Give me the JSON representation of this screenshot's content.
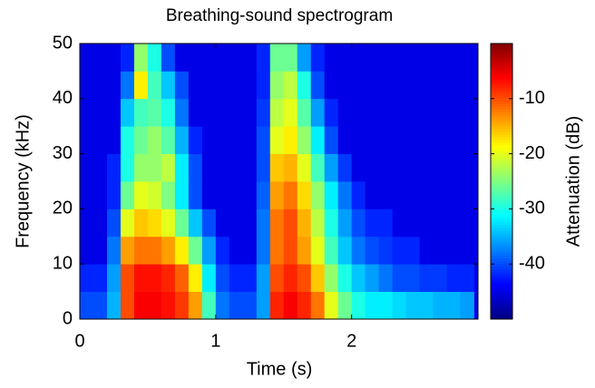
{
  "chart_data": {
    "type": "heatmap",
    "title": "Breathing-sound spectrogram",
    "x_label": "Time (s)",
    "y_label": "Frequency (kHz)",
    "colorbar_label": "Attenuation (dB)",
    "colormap": "jet",
    "xlim": [
      0,
      2.93
    ],
    "xticks": [
      0,
      1,
      2
    ],
    "ylim": [
      0,
      50
    ],
    "yticks": [
      0,
      10,
      20,
      30,
      40,
      50
    ],
    "clim": [
      -50,
      0
    ],
    "cticks": [
      -10,
      -20,
      -30,
      -40
    ],
    "x": [
      0.05,
      0.15,
      0.25,
      0.35,
      0.45,
      0.55,
      0.65,
      0.75,
      0.85,
      0.95,
      1.05,
      1.15,
      1.25,
      1.35,
      1.45,
      1.55,
      1.65,
      1.75,
      1.85,
      1.95,
      2.05,
      2.15,
      2.25,
      2.35,
      2.45,
      2.55,
      2.65,
      2.75,
      2.85
    ],
    "y": [
      2.5,
      7.5,
      12.5,
      17.5,
      22.5,
      27.5,
      32.5,
      37.5,
      42.5,
      47.5
    ],
    "z": [
      [
        -40,
        -40,
        -35,
        -10,
        -6,
        -6,
        -7,
        -9,
        -14,
        -28,
        -38,
        -40,
        -40,
        -36,
        -8,
        -6,
        -8,
        -12,
        -20,
        -26,
        -30,
        -32,
        -32,
        -33,
        -34,
        -34,
        -35,
        -35,
        -36
      ],
      [
        -42,
        -42,
        -36,
        -10,
        -7,
        -7,
        -8,
        -11,
        -18,
        -32,
        -40,
        -42,
        -42,
        -36,
        -10,
        -8,
        -10,
        -16,
        -24,
        -30,
        -34,
        -36,
        -38,
        -40,
        -40,
        -41,
        -41,
        -42,
        -42
      ],
      [
        -45,
        -45,
        -38,
        -14,
        -12,
        -12,
        -14,
        -18,
        -26,
        -36,
        -42,
        -45,
        -45,
        -38,
        -12,
        -10,
        -14,
        -20,
        -28,
        -34,
        -38,
        -40,
        -41,
        -42,
        -42,
        -45,
        -45,
        -45,
        -45
      ],
      [
        -45,
        -45,
        -40,
        -20,
        -16,
        -17,
        -20,
        -26,
        -34,
        -40,
        -45,
        -45,
        -45,
        -38,
        -12,
        -10,
        -15,
        -22,
        -30,
        -36,
        -40,
        -42,
        -42,
        -45,
        -45,
        -45,
        -45,
        -45,
        -45
      ],
      [
        -45,
        -45,
        -42,
        -26,
        -20,
        -21,
        -25,
        -32,
        -40,
        -45,
        -45,
        -45,
        -45,
        -39,
        -14,
        -12,
        -17,
        -24,
        -32,
        -38,
        -42,
        -45,
        -45,
        -45,
        -45,
        -45,
        -45,
        -45,
        -45
      ],
      [
        -45,
        -45,
        -42,
        -30,
        -24,
        -24,
        -22,
        -32,
        -40,
        -45,
        -45,
        -45,
        -45,
        -40,
        -16,
        -15,
        -20,
        -28,
        -36,
        -41,
        -45,
        -45,
        -45,
        -45,
        -45,
        -45,
        -45,
        -45,
        -45
      ],
      [
        -45,
        -45,
        -45,
        -30,
        -26,
        -24,
        -27,
        -35,
        -42,
        -45,
        -45,
        -45,
        -45,
        -40,
        -20,
        -18,
        -24,
        -32,
        -40,
        -45,
        -45,
        -45,
        -45,
        -45,
        -45,
        -45,
        -45,
        -45,
        -45
      ],
      [
        -45,
        -45,
        -45,
        -34,
        -28,
        -27,
        -30,
        -38,
        -45,
        -45,
        -45,
        -45,
        -45,
        -41,
        -22,
        -20,
        -27,
        -36,
        -42,
        -45,
        -45,
        -45,
        -45,
        -45,
        -45,
        -45,
        -45,
        -45,
        -45
      ],
      [
        -45,
        -45,
        -45,
        -38,
        -18,
        -28,
        -34,
        -40,
        -45,
        -45,
        -45,
        -45,
        -45,
        -42,
        -24,
        -22,
        -30,
        -40,
        -45,
        -45,
        -45,
        -45,
        -45,
        -45,
        -45,
        -45,
        -45,
        -45,
        -45
      ],
      [
        -45,
        -45,
        -45,
        -42,
        -24,
        -30,
        -40,
        -45,
        -45,
        -45,
        -45,
        -45,
        -45,
        -42,
        -26,
        -26,
        -36,
        -42,
        -45,
        -45,
        -45,
        -45,
        -45,
        -45,
        -45,
        -45,
        -45,
        -45,
        -45
      ]
    ]
  }
}
